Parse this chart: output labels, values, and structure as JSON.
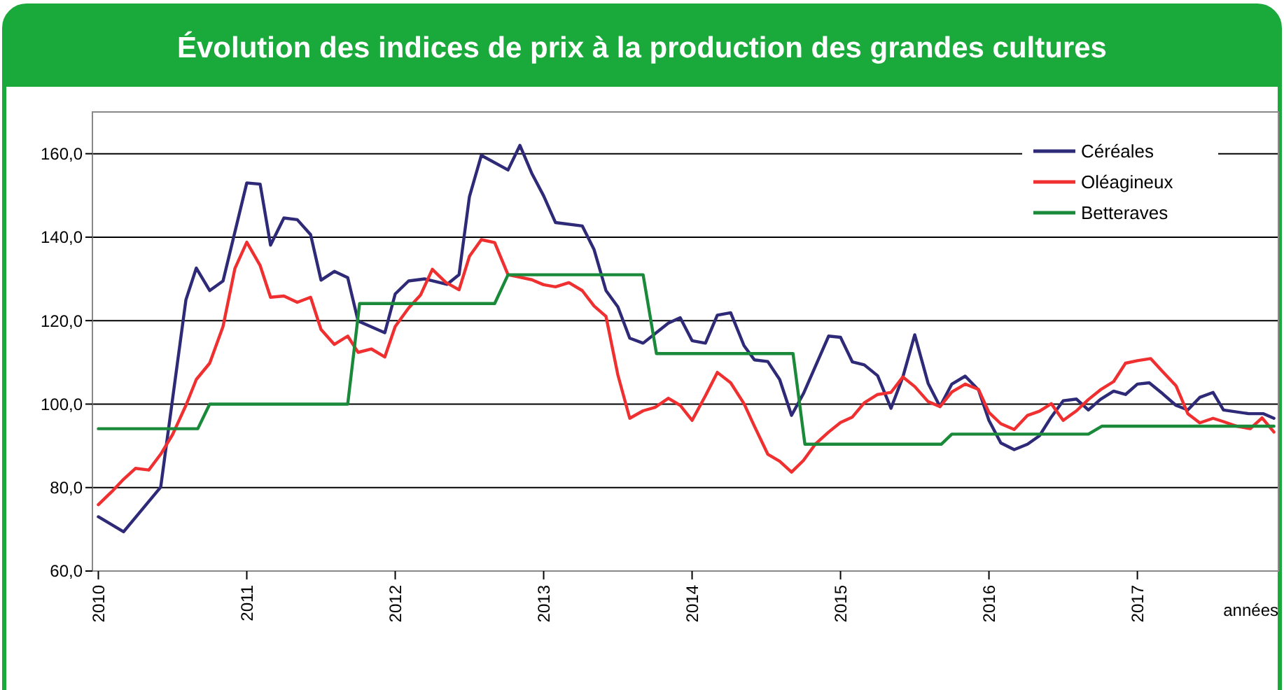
{
  "chart_data": {
    "type": "line",
    "title": "Évolution des indices de prix à la production des grandes cultures",
    "xlabel": "années",
    "xlim": [
      2009.96,
      2017.95
    ],
    "xticks": [
      2010,
      2011,
      2012,
      2013,
      2014,
      2015,
      2016,
      2017
    ],
    "ylim": [
      60,
      170
    ],
    "yticks": [
      {
        "value": 60,
        "label": "60,0"
      },
      {
        "value": 80,
        "label": "80,0"
      },
      {
        "value": 100,
        "label": "100,0"
      },
      {
        "value": 120,
        "label": "120,0"
      },
      {
        "value": 140,
        "label": "140,0"
      },
      {
        "value": 160,
        "label": "160,0"
      }
    ],
    "grid": "y",
    "legend": "top right",
    "marker": "none",
    "line_style": "solid",
    "series": [
      {
        "name": "Céréales",
        "color": "#2e2a78",
        "x": [
          2010.0,
          2010.17,
          2010.42,
          2010.59,
          2010.66,
          2010.75,
          2010.84,
          2011.0,
          2011.09,
          2011.16,
          2011.25,
          2011.34,
          2011.43,
          2011.5,
          2011.59,
          2011.68,
          2011.75,
          2011.93,
          2012.0,
          2012.09,
          2012.2,
          2012.35,
          2012.43,
          2012.5,
          2012.58,
          2012.76,
          2012.84,
          2012.92,
          2013.0,
          2013.08,
          2013.26,
          2013.34,
          2013.42,
          2013.5,
          2013.58,
          2013.67,
          2013.84,
          2013.92,
          2014.0,
          2014.09,
          2014.17,
          2014.26,
          2014.35,
          2014.42,
          2014.51,
          2014.59,
          2014.67,
          2014.75,
          2014.92,
          2015.0,
          2015.08,
          2015.16,
          2015.25,
          2015.34,
          2015.42,
          2015.5,
          2015.59,
          2015.67,
          2015.75,
          2015.84,
          2015.93,
          2016.0,
          2016.08,
          2016.17,
          2016.26,
          2016.34,
          2016.42,
          2016.5,
          2016.59,
          2016.67,
          2016.75,
          2016.84,
          2016.92,
          2017.0,
          2017.08,
          2017.17,
          2017.26,
          2017.34,
          2017.42,
          2017.51,
          2017.58,
          2017.75,
          2017.85,
          2017.92
        ],
        "values": [
          73.0,
          69.4,
          80.1,
          125,
          132.6,
          127.2,
          129.5,
          153,
          152.7,
          138.1,
          144.6,
          144.2,
          140.6,
          129.7,
          131.8,
          130.3,
          119.9,
          117.1,
          126.4,
          129.5,
          130.0,
          128.7,
          131,
          149.7,
          159.6,
          156.1,
          162.0,
          155.3,
          149.9,
          143.5,
          142.7,
          137.0,
          127.2,
          123.3,
          115.8,
          114.6,
          119.4,
          120.7,
          115.2,
          114.6,
          121.3,
          121.9,
          114.0,
          110.6,
          110.2,
          105.9,
          97.3,
          102.5,
          116.3,
          116.0,
          110.1,
          109.4,
          106.8,
          99.0,
          106.5,
          116.6,
          105.0,
          99.4,
          104.8,
          106.7,
          103.4,
          96.1,
          90.7,
          89.1,
          90.4,
          92.4,
          96.9,
          100.8,
          101.2,
          98.6,
          101.1,
          103.1,
          102.3,
          104.8,
          105.1,
          102.5,
          99.7,
          98.6,
          101.6,
          102.8,
          98.6,
          97.7,
          97.7,
          96.6
        ]
      },
      {
        "name": "Oléagineux",
        "color": "#f03030",
        "x": [
          2010.0,
          2010.09,
          2010.17,
          2010.25,
          2010.34,
          2010.42,
          2010.5,
          2010.59,
          2010.66,
          2010.75,
          2010.84,
          2010.92,
          2011.0,
          2011.09,
          2011.16,
          2011.25,
          2011.34,
          2011.43,
          2011.5,
          2011.59,
          2011.68,
          2011.75,
          2011.84,
          2011.93,
          2012.0,
          2012.09,
          2012.17,
          2012.25,
          2012.34,
          2012.43,
          2012.5,
          2012.58,
          2012.67,
          2012.76,
          2012.84,
          2012.92,
          2013.0,
          2013.08,
          2013.17,
          2013.26,
          2013.34,
          2013.42,
          2013.5,
          2013.58,
          2013.67,
          2013.75,
          2013.84,
          2013.92,
          2014.0,
          2014.09,
          2014.17,
          2014.26,
          2014.35,
          2014.42,
          2014.51,
          2014.59,
          2014.67,
          2014.75,
          2014.83,
          2014.92,
          2015.0,
          2015.08,
          2015.16,
          2015.25,
          2015.34,
          2015.42,
          2015.5,
          2015.59,
          2015.67,
          2015.75,
          2015.84,
          2015.93,
          2016.0,
          2016.08,
          2016.17,
          2016.26,
          2016.34,
          2016.42,
          2016.5,
          2016.59,
          2016.67,
          2016.75,
          2016.84,
          2016.92,
          2017.0,
          2017.09,
          2017.17,
          2017.26,
          2017.34,
          2017.42,
          2017.51,
          2017.58,
          2017.67,
          2017.76,
          2017.84,
          2017.92
        ],
        "values": [
          75.9,
          79.0,
          82.0,
          84.6,
          84.2,
          88.0,
          92.7,
          99.7,
          105.9,
          109.8,
          118.6,
          132.5,
          138.8,
          133.2,
          125.6,
          125.9,
          124.4,
          125.6,
          117.9,
          114.3,
          116.3,
          112.4,
          113.2,
          111.3,
          118.6,
          123,
          126.1,
          132.3,
          129.2,
          127.4,
          135.4,
          139.4,
          138.7,
          131,
          130.4,
          129.8,
          128.6,
          128.1,
          129.1,
          127.2,
          123.5,
          121.0,
          107.0,
          96.6,
          98.4,
          99.2,
          101.4,
          99.7,
          96.1,
          102.0,
          107.6,
          105.1,
          100.1,
          94.7,
          88.0,
          86.3,
          83.7,
          86.5,
          90.4,
          93.3,
          95.6,
          96.9,
          100.3,
          102.3,
          102.8,
          106.5,
          104.2,
          100.6,
          99.4,
          102.9,
          104.8,
          103.5,
          98.0,
          95.3,
          93.9,
          97.3,
          98.3,
          100.1,
          96.1,
          98.4,
          101.1,
          103.4,
          105.4,
          109.8,
          110.4,
          110.9,
          107.8,
          104.4,
          97.7,
          95.5,
          96.6,
          95.8,
          94.7,
          94.1,
          96.7,
          93.3
        ]
      },
      {
        "name": "Betteraves",
        "color": "#1a8a3a",
        "x": [
          2010.0,
          2010.67,
          2010.75,
          2011.68,
          2011.76,
          2012.67,
          2012.76,
          2013.67,
          2013.76,
          2014.68,
          2014.76,
          2015.68,
          2015.75,
          2016.67,
          2016.76,
          2017.92
        ],
        "values": [
          94.1,
          94.1,
          100.0,
          100.0,
          124.1,
          124.1,
          131.0,
          131.0,
          112.1,
          112.1,
          90.4,
          90.4,
          92.8,
          92.8,
          94.7,
          94.7
        ]
      }
    ]
  }
}
